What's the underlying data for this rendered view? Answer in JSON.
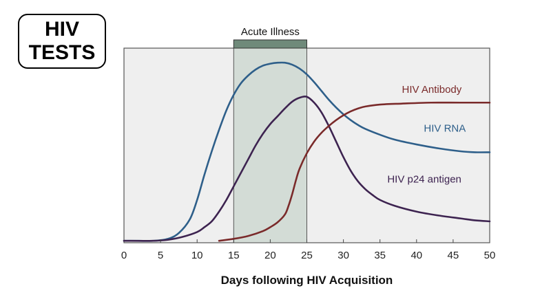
{
  "badge": {
    "line1": "HIV",
    "line2": "TESTS"
  },
  "chart_data": {
    "type": "line",
    "title": "",
    "xlabel": "Days following HIV Acquisition",
    "ylabel": "",
    "xlim": [
      0,
      50
    ],
    "ylim": [
      0,
      100
    ],
    "x_ticks": [
      "0",
      "5",
      "10",
      "15",
      "20",
      "25",
      "30",
      "35",
      "40",
      "45",
      "50"
    ],
    "grid": false,
    "shaded_band": {
      "label": "Acute Illness",
      "x_start": 15,
      "x_end": 25,
      "color": "#6f8a7a"
    },
    "series": [
      {
        "name": "HIV RNA",
        "color": "#2e5f8a",
        "points": [
          [
            0,
            1
          ],
          [
            2,
            1
          ],
          [
            4,
            1
          ],
          [
            6,
            2
          ],
          [
            7.5,
            5
          ],
          [
            9,
            12
          ],
          [
            10,
            22
          ],
          [
            11,
            35
          ],
          [
            12,
            47
          ],
          [
            13,
            58
          ],
          [
            14,
            68
          ],
          [
            15,
            76
          ],
          [
            16,
            82
          ],
          [
            17,
            86
          ],
          [
            18,
            89
          ],
          [
            19,
            91
          ],
          [
            20,
            92
          ],
          [
            21,
            92.5
          ],
          [
            22,
            92.5
          ],
          [
            23,
            91.5
          ],
          [
            24,
            89.5
          ],
          [
            25,
            86.5
          ],
          [
            26,
            82.5
          ],
          [
            27,
            78
          ],
          [
            28,
            73.5
          ],
          [
            29,
            69.5
          ],
          [
            30,
            66
          ],
          [
            31,
            63
          ],
          [
            32,
            60.5
          ],
          [
            33,
            58.5
          ],
          [
            35,
            55.5
          ],
          [
            37,
            53
          ],
          [
            40,
            50.5
          ],
          [
            43,
            48.5
          ],
          [
            46,
            47
          ],
          [
            48,
            46.5
          ],
          [
            50,
            46.5
          ]
        ]
      },
      {
        "name": "HIV p24 antigen",
        "color": "#3d2350",
        "points": [
          [
            0,
            1
          ],
          [
            4,
            1
          ],
          [
            6,
            1.5
          ],
          [
            8,
            3
          ],
          [
            10,
            5.5
          ],
          [
            11,
            8
          ],
          [
            12,
            11
          ],
          [
            13,
            16
          ],
          [
            14,
            22
          ],
          [
            15,
            29
          ],
          [
            16,
            36
          ],
          [
            17,
            43
          ],
          [
            18,
            50
          ],
          [
            19,
            56
          ],
          [
            20,
            61
          ],
          [
            21,
            65
          ],
          [
            22,
            69
          ],
          [
            23,
            72.5
          ],
          [
            24,
            74.5
          ],
          [
            25,
            75
          ],
          [
            26,
            72
          ],
          [
            27,
            67
          ],
          [
            28,
            60
          ],
          [
            29,
            52
          ],
          [
            30,
            44
          ],
          [
            31,
            37
          ],
          [
            32,
            31.5
          ],
          [
            33,
            27.5
          ],
          [
            34,
            24.5
          ],
          [
            35,
            22
          ],
          [
            37,
            19
          ],
          [
            40,
            16
          ],
          [
            43,
            14
          ],
          [
            46,
            12.5
          ],
          [
            48,
            11.5
          ],
          [
            50,
            11
          ]
        ]
      },
      {
        "name": "HIV Antibody",
        "color": "#7a2a2a",
        "points": [
          [
            13,
            1
          ],
          [
            15,
            2
          ],
          [
            17,
            3.5
          ],
          [
            19,
            6
          ],
          [
            20,
            8
          ],
          [
            21,
            10.5
          ],
          [
            22,
            14.5
          ],
          [
            22.5,
            19
          ],
          [
            23,
            25
          ],
          [
            23.5,
            32
          ],
          [
            24,
            38
          ],
          [
            25,
            46
          ],
          [
            26,
            52
          ],
          [
            27,
            56.5
          ],
          [
            28,
            60
          ],
          [
            29,
            63
          ],
          [
            30,
            65.5
          ],
          [
            31,
            67.5
          ],
          [
            32,
            69
          ],
          [
            33,
            70
          ],
          [
            35,
            71
          ],
          [
            38,
            71.5
          ],
          [
            42,
            72
          ],
          [
            46,
            72
          ],
          [
            50,
            72
          ]
        ]
      }
    ],
    "annotations": [
      {
        "text": "HIV Antibody",
        "x": 38,
        "y": 77,
        "color": "#7a2a2a"
      },
      {
        "text": "HIV RNA",
        "x": 41,
        "y": 57,
        "color": "#2e5f8a"
      },
      {
        "text": "HIV p24 antigen",
        "x": 36,
        "y": 31,
        "color": "#3d2350"
      }
    ]
  }
}
